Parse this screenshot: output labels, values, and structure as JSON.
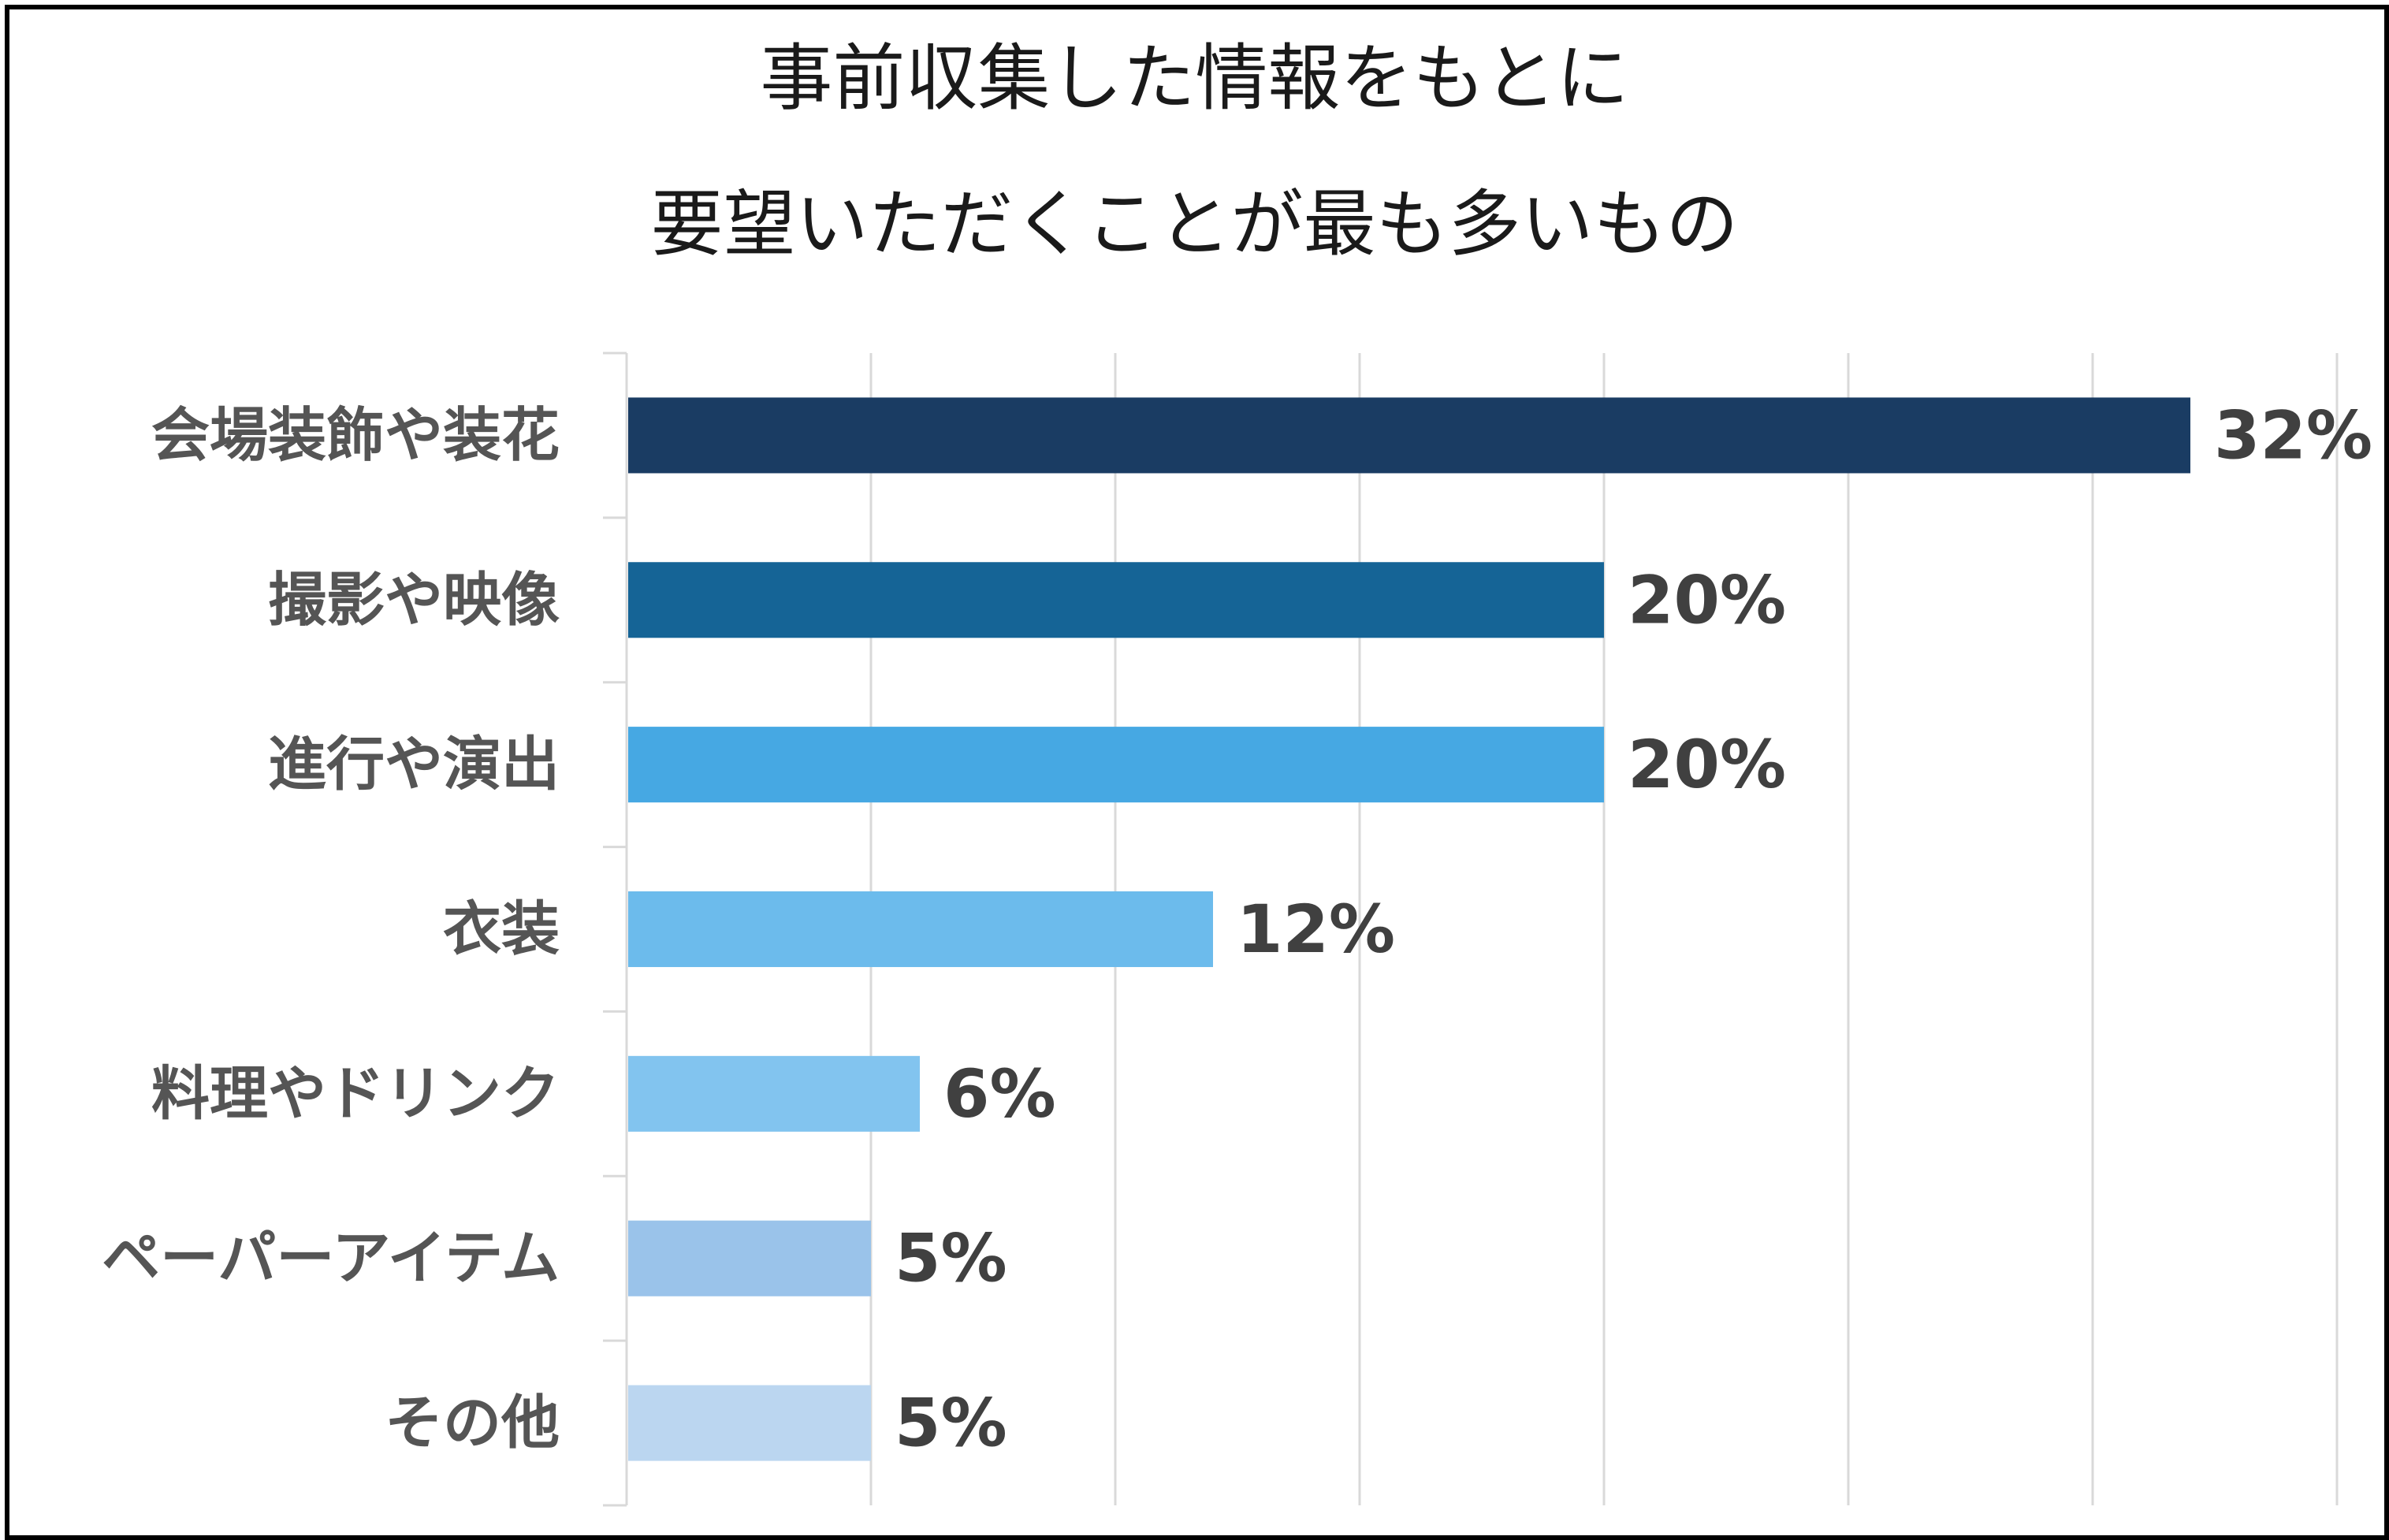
{
  "chart_data": {
    "type": "bar",
    "orientation": "horizontal",
    "title_lines": [
      "事前収集した情報をもとに",
      "要望いただくことが最も多いもの"
    ],
    "categories": [
      "会場装飾や装花",
      "撮影や映像",
      "進行や演出",
      "衣装",
      "料理やドリンク",
      "ペーパーアイテム",
      "その他"
    ],
    "values": [
      32,
      20,
      20,
      12,
      6,
      5,
      5
    ],
    "value_labels": [
      "32%",
      "20%",
      "20%",
      "12%",
      "6%",
      "5%",
      "5%"
    ],
    "xlim": [
      0,
      35
    ],
    "grid": true,
    "legend": "none",
    "bar_colors": [
      "#1a3c63",
      "#156496",
      "#46a8e3",
      "#6cbbec",
      "#82c4ef",
      "#9ac3ea",
      "#bbd6f0"
    ]
  }
}
